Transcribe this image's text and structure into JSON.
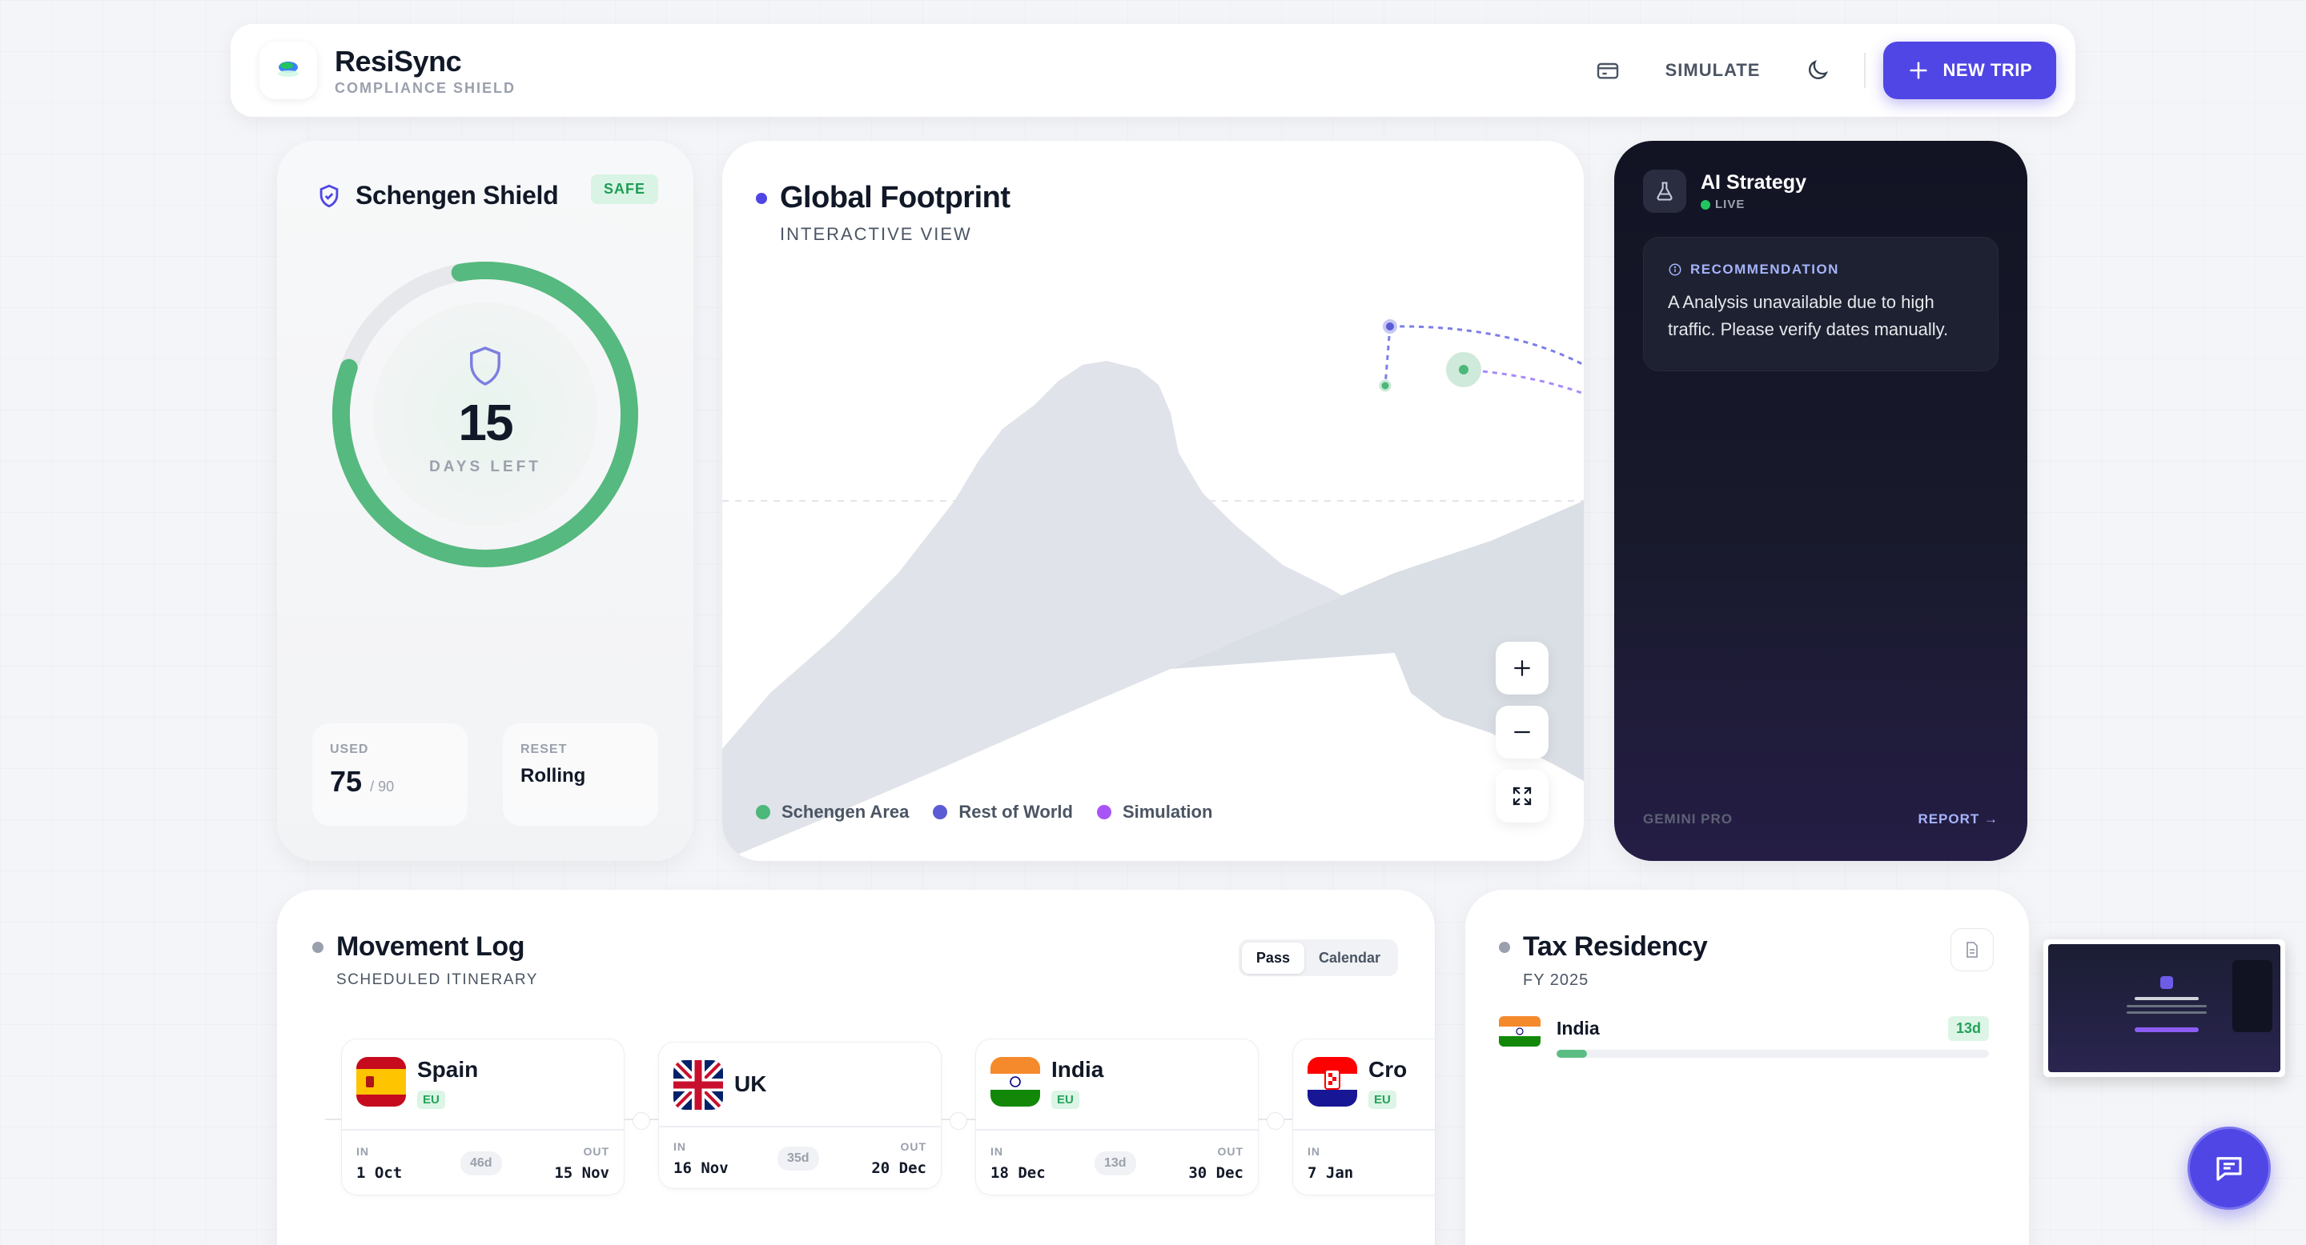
{
  "header": {
    "brand_name": "ResiSync",
    "brand_tag": "COMPLIANCE SHIELD",
    "simulate_label": "SIMULATE",
    "new_trip_label": "NEW TRIP",
    "icons": [
      "card-icon",
      "moon-icon",
      "plus-icon"
    ]
  },
  "schengen": {
    "title": "Schengen Shield",
    "status_badge": "SAFE",
    "days_left": "15",
    "days_left_label": "DAYS LEFT",
    "gauge_fraction": 0.83,
    "used_label": "USED",
    "used_value": "75",
    "used_max": "/ 90",
    "reset_label": "RESET",
    "reset_value": "Rolling"
  },
  "map": {
    "title": "Global Footprint",
    "subtitle": "INTERACTIVE VIEW",
    "legend": [
      {
        "label": "Schengen Area",
        "color": "#4cb87a"
      },
      {
        "label": "Rest of World",
        "color": "#5b5bd6"
      },
      {
        "label": "Simulation",
        "color": "#a855f7"
      }
    ]
  },
  "ai": {
    "title": "AI Strategy",
    "live_label": "LIVE",
    "recommendation_label": "RECOMMENDATION",
    "recommendation_text": "A Analysis unavailable due to high traffic. Please verify dates manually.",
    "footer_left": "GEMINI PRO",
    "footer_right": "REPORT →"
  },
  "movement_log": {
    "title": "Movement Log",
    "subtitle": "SCHEDULED ITINERARY",
    "toggle": [
      "Pass",
      "Calendar"
    ],
    "active_toggle": "Pass",
    "trips": [
      {
        "country": "Spain",
        "badge": "EU",
        "in_label": "IN",
        "in": "1 Oct",
        "duration": "46d",
        "out_label": "OUT",
        "out": "15 Nov"
      },
      {
        "country": "UK",
        "badge": "",
        "in_label": "IN",
        "in": "16 Nov",
        "duration": "35d",
        "out_label": "OUT",
        "out": "20 Dec"
      },
      {
        "country": "India",
        "badge": "EU",
        "in_label": "IN",
        "in": "18 Dec",
        "duration": "13d",
        "out_label": "OUT",
        "out": "30 Dec"
      },
      {
        "country": "Cro",
        "badge": "EU",
        "in_label": "IN",
        "in": "7 Jan",
        "duration": "",
        "out_label": "",
        "out": ""
      }
    ]
  },
  "tax": {
    "title": "Tax Residency",
    "subtitle": "FY 2025",
    "rows": [
      {
        "country": "India",
        "days": "13d",
        "fraction": 0.07
      }
    ]
  },
  "colors": {
    "accent": "#4f46e5",
    "green": "#4cb87a"
  }
}
